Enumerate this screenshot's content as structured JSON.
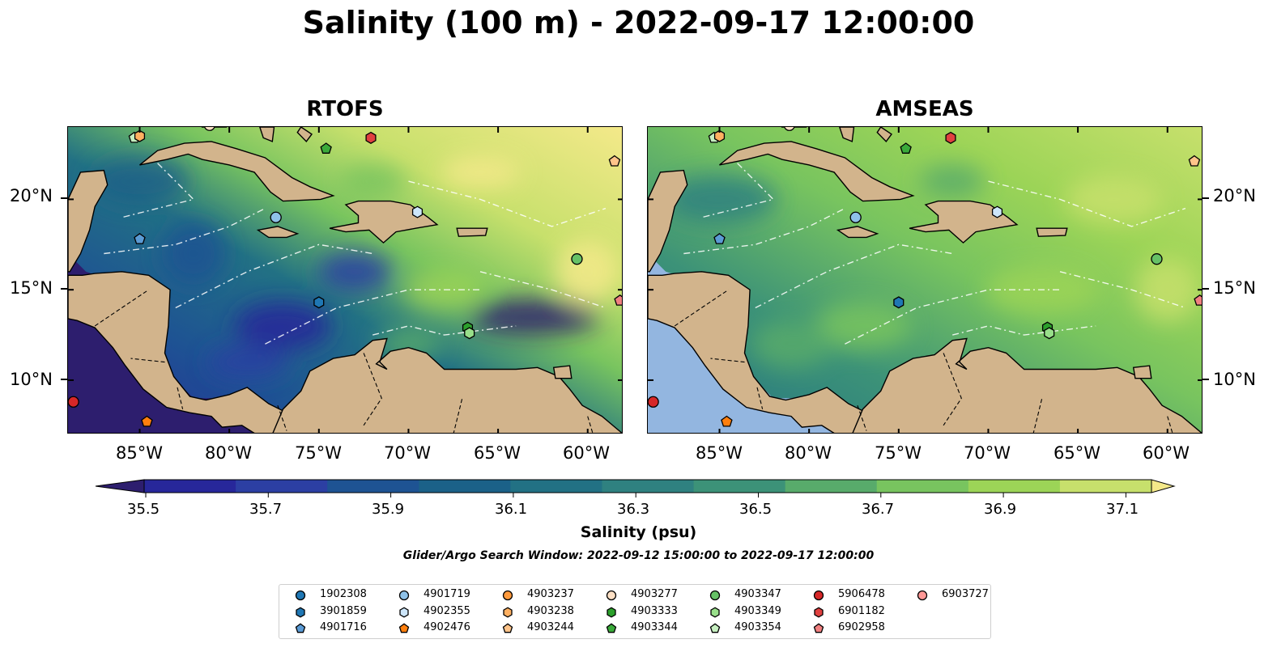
{
  "title": "Salinity (100 m) - 2022-09-17 12:00:00",
  "panels": [
    {
      "name": "rtofs",
      "title": "RTOFS"
    },
    {
      "name": "amseas",
      "title": "AMSEAS"
    }
  ],
  "axes": {
    "lon_ticks": [
      "85°W",
      "80°W",
      "75°W",
      "70°W",
      "65°W",
      "60°W"
    ],
    "lat_ticks": [
      "20°N",
      "15°N",
      "10°N"
    ],
    "lon_range": [
      -89,
      -58
    ],
    "lat_range": [
      7,
      24
    ]
  },
  "colorbar": {
    "label": "Salinity (psu)",
    "ticks": [
      "35.5",
      "35.7",
      "35.9",
      "36.1",
      "36.3",
      "36.5",
      "36.7",
      "36.9",
      "37.1"
    ],
    "colors": [
      "#2d1e6e",
      "#27279a",
      "#2c3fa3",
      "#1e5393",
      "#1b6188",
      "#227184",
      "#2f8180",
      "#3c9278",
      "#58ab6b",
      "#78c45f",
      "#9cd457",
      "#c7e06c",
      "#f4e98a"
    ]
  },
  "subtitle": "Glider/Argo Search Window: 2022-09-12 15:00:00 to 2022-09-17 12:00:00",
  "legend": [
    {
      "id": "1902308",
      "marker": "circle",
      "color": "#1f77b4"
    },
    {
      "id": "3901859",
      "marker": "hexagon",
      "color": "#1f77b4"
    },
    {
      "id": "4901716",
      "marker": "pentagon",
      "color": "#5b9bd5"
    },
    {
      "id": "4901719",
      "marker": "circle",
      "color": "#8ec1e8"
    },
    {
      "id": "4902355",
      "marker": "hexagon",
      "color": "#cde6fa"
    },
    {
      "id": "4902476",
      "marker": "pentagon",
      "color": "#ff7f0e"
    },
    {
      "id": "4903237",
      "marker": "circle",
      "color": "#ff9a3c"
    },
    {
      "id": "4903238",
      "marker": "hexagon",
      "color": "#ffb061"
    },
    {
      "id": "4903244",
      "marker": "pentagon",
      "color": "#ffc48a"
    },
    {
      "id": "4903277",
      "marker": "circle",
      "color": "#fde0c5"
    },
    {
      "id": "4903333",
      "marker": "hexagon",
      "color": "#2ca02c"
    },
    {
      "id": "4903344",
      "marker": "pentagon",
      "color": "#3aaa3a"
    },
    {
      "id": "4903347",
      "marker": "circle",
      "color": "#66c166"
    },
    {
      "id": "4903349",
      "marker": "hexagon",
      "color": "#98df8a"
    },
    {
      "id": "4903354",
      "marker": "pentagon",
      "color": "#c6efc0"
    },
    {
      "id": "5906478",
      "marker": "circle",
      "color": "#d62728"
    },
    {
      "id": "6901182",
      "marker": "hexagon",
      "color": "#e0403f"
    },
    {
      "id": "6902958",
      "marker": "pentagon",
      "color": "#f08080"
    },
    {
      "id": "6903727",
      "marker": "circle",
      "color": "#ff9896"
    }
  ],
  "floats": [
    {
      "id": "4901719",
      "lon": -77.4,
      "lat": 19.0
    },
    {
      "id": "4902355",
      "lon": -69.5,
      "lat": 19.3
    },
    {
      "id": "4901716",
      "lon": -85.0,
      "lat": 17.8
    },
    {
      "id": "3901859",
      "lon": -75.0,
      "lat": 14.3
    },
    {
      "id": "4903333",
      "lon": -66.7,
      "lat": 12.9
    },
    {
      "id": "4903349",
      "lon": -66.6,
      "lat": 12.6
    },
    {
      "id": "4903347",
      "lon": -60.6,
      "lat": 16.7
    },
    {
      "id": "6902958",
      "lon": -58.2,
      "lat": 14.4
    },
    {
      "id": "5906478",
      "lon": -88.7,
      "lat": 8.8
    },
    {
      "id": "4902476",
      "lon": -84.6,
      "lat": 7.7
    },
    {
      "id": "4903354",
      "lon": -85.3,
      "lat": 23.4
    },
    {
      "id": "4903238",
      "lon": -85.0,
      "lat": 23.5
    },
    {
      "id": "4903344",
      "lon": -74.6,
      "lat": 22.8
    },
    {
      "id": "6901182",
      "lon": -72.1,
      "lat": 23.4
    },
    {
      "id": "4903244",
      "lon": -58.5,
      "lat": 22.1
    },
    {
      "id": "4903277",
      "lon": -81.1,
      "lat": 24.1
    }
  ]
}
